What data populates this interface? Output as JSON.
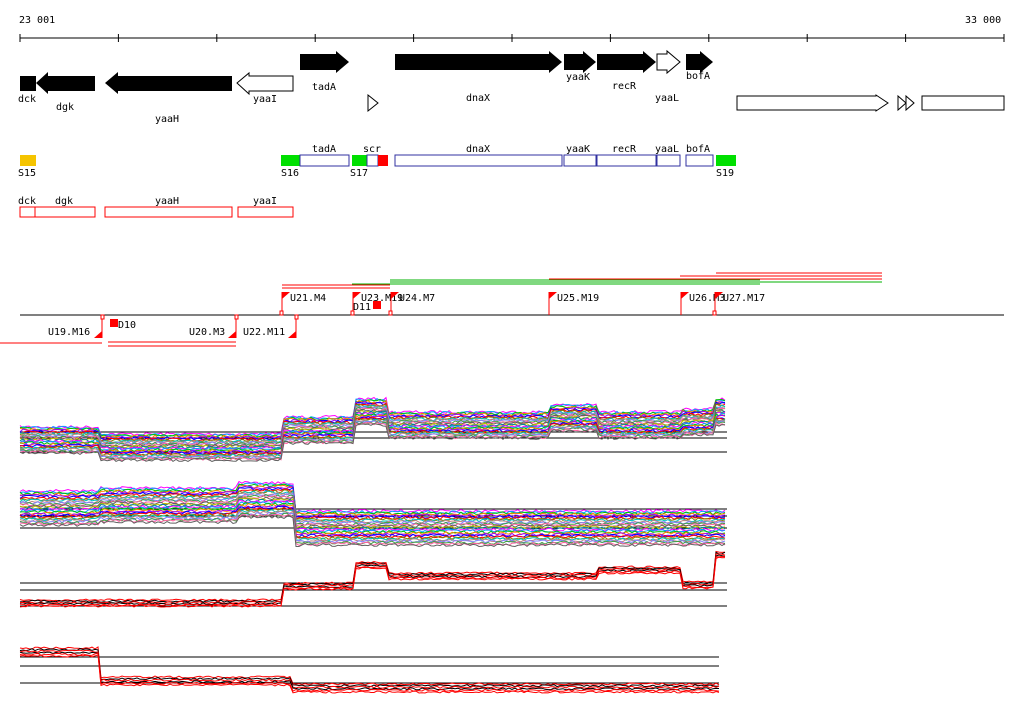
{
  "coordinates": {
    "start_label": "23 001",
    "end_label": "33 000"
  },
  "genes": [
    {
      "label": "dck",
      "strand": "-",
      "filled": true
    },
    {
      "label": "dgk",
      "strand": "-",
      "filled": true
    },
    {
      "label": "yaaH",
      "strand": "-",
      "filled": true
    },
    {
      "label": "yaaI",
      "strand": "-",
      "filled": false
    },
    {
      "label": "tadA",
      "strand": "+",
      "filled": true
    },
    {
      "label": "dnaX",
      "strand": "+",
      "filled": true
    },
    {
      "label": "yaaK",
      "strand": "+",
      "filled": true
    },
    {
      "label": "recR",
      "strand": "+",
      "filled": true
    },
    {
      "label": "yaaL",
      "strand": "+",
      "filled": false
    },
    {
      "label": "bofA",
      "strand": "+",
      "filled": true
    }
  ],
  "features_plus": [
    {
      "label": "S15",
      "color": "#f5c400"
    },
    {
      "label": "S16",
      "color": "#00e000"
    },
    {
      "label": "tadA",
      "color": "#ffffff",
      "outline": "#3030a0"
    },
    {
      "label": "S17",
      "color": "#00e000"
    },
    {
      "label": "scr",
      "color": "#ffffff",
      "outline": "#3030a0"
    },
    {
      "label": "dnaX",
      "color": "#ffffff",
      "outline": "#3030a0"
    },
    {
      "label": "yaaK",
      "color": "#ffffff",
      "outline": "#3030a0"
    },
    {
      "label": "recR",
      "color": "#ffffff",
      "outline": "#3030a0"
    },
    {
      "label": "yaaL",
      "color": "#ffffff",
      "outline": "#3030a0"
    },
    {
      "label": "bofA",
      "color": "#ffffff",
      "outline": "#3030a0"
    },
    {
      "label": "S19",
      "color": "#00e000"
    }
  ],
  "features_minus": [
    {
      "label": "dck"
    },
    {
      "label": "dgk"
    },
    {
      "label": "yaaH"
    },
    {
      "label": "yaaI"
    }
  ],
  "promoters_up": [
    "U21.M4",
    "U23.M19",
    "U24.M7",
    "D11",
    "U25.M19",
    "U26.M3",
    "U27.M17"
  ],
  "promoters_down": [
    "U19.M16",
    "D10",
    "U20.M3",
    "U22.M11"
  ],
  "colors": {
    "accent_red": "#ff0000",
    "accent_green": "#00b000",
    "feature_blue": "#3030a0"
  }
}
